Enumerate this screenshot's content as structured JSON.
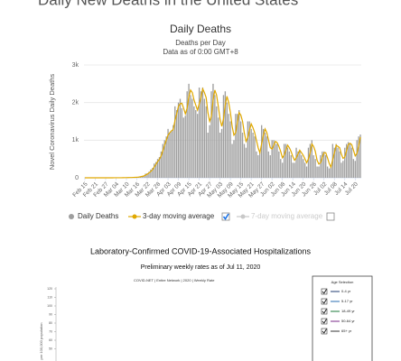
{
  "page_title": "Daily New Deaths in the United States",
  "chart_data": [
    {
      "type": "bar",
      "title": "Daily Deaths",
      "subtitle": [
        "Deaths per Day",
        "Data as of 0:00 GMT+8"
      ],
      "y_label": "Novel Coronavirus Daily Deaths",
      "categories": [
        "Feb 15",
        null,
        null,
        null,
        null,
        null,
        "Feb 21",
        null,
        null,
        null,
        null,
        null,
        "Feb 27",
        null,
        null,
        null,
        null,
        null,
        "Mar 04",
        null,
        null,
        null,
        null,
        null,
        "Mar 10",
        null,
        null,
        null,
        null,
        null,
        "Mar 16",
        null,
        null,
        null,
        null,
        null,
        "Mar 22",
        null,
        null,
        null,
        null,
        null,
        "Mar 28",
        null,
        null,
        null,
        null,
        null,
        "Apr 03",
        null,
        null,
        null,
        null,
        null,
        "Apr 09",
        null,
        null,
        null,
        null,
        null,
        "Apr 15",
        null,
        null,
        null,
        null,
        null,
        "Apr 21",
        null,
        null,
        null,
        null,
        null,
        "Apr 27",
        null,
        null,
        null,
        null,
        null,
        "May 03",
        null,
        null,
        null,
        null,
        null,
        "May 09",
        null,
        null,
        null,
        null,
        null,
        "May 15",
        null,
        null,
        null,
        null,
        null,
        "May 21",
        null,
        null,
        null,
        null,
        null,
        "May 27",
        null,
        null,
        null,
        null,
        null,
        "Jun 02",
        null,
        null,
        null,
        null,
        null,
        "Jun 08",
        null,
        null,
        null,
        null,
        null,
        "Jun 14",
        null,
        null,
        null,
        null,
        null,
        "Jun 20",
        null,
        null,
        null,
        null,
        null,
        "Jun 26",
        null,
        null,
        null,
        null,
        null,
        "Jul 02",
        null,
        null,
        null,
        null,
        null,
        "Jul 08",
        null,
        null,
        null,
        null,
        null,
        "Jul 14",
        null,
        null,
        null,
        null,
        null,
        "Jul 20",
        null,
        null,
        null
      ],
      "series": [
        {
          "name": "Daily Deaths",
          "color": "#9e9e9e",
          "values": [
            0,
            0,
            0,
            0,
            0,
            0,
            0,
            0,
            0,
            0,
            0,
            0,
            0,
            0,
            0,
            1,
            0,
            1,
            4,
            1,
            2,
            3,
            4,
            4,
            5,
            8,
            7,
            10,
            13,
            12,
            20,
            25,
            35,
            50,
            60,
            110,
            120,
            160,
            220,
            260,
            380,
            420,
            500,
            550,
            700,
            900,
            1000,
            1100,
            1300,
            1200,
            1250,
            1400,
            1900,
            1800,
            2000,
            2100,
            1850,
            1600,
            1650,
            2300,
            2500,
            2200,
            2100,
            1900,
            1800,
            1700,
            2400,
            2300,
            2400,
            2100,
            1900,
            1200,
            1400,
            2300,
            2500,
            2200,
            1900,
            1600,
            1200,
            1300,
            2200,
            2300,
            2000,
            1700,
            1500,
            900,
            1000,
            1700,
            1700,
            1800,
            1500,
            1200,
            900,
            800,
            1500,
            1500,
            1300,
            1200,
            1100,
            700,
            600,
            700,
            1400,
            1300,
            1200,
            1100,
            700,
            600,
            1000,
            1000,
            900,
            900,
            700,
            500,
            400,
            900,
            900,
            800,
            700,
            600,
            400,
            400,
            800,
            700,
            700,
            600,
            500,
            400,
            300,
            800,
            900,
            1000,
            600,
            500,
            300,
            300,
            600,
            700,
            700,
            600,
            300,
            250,
            300,
            900,
            800,
            900,
            800,
            700,
            400,
            450,
            800,
            900,
            950,
            900,
            800,
            500,
            450,
            1000,
            1100,
            1150
          ]
        },
        {
          "name": "3-day moving average",
          "color": "#e0a800",
          "type": "line",
          "checked": true,
          "values": [
            0,
            0,
            0,
            0,
            0,
            0,
            0,
            0,
            0,
            0,
            0,
            0,
            0,
            0,
            0,
            0,
            0,
            1,
            2,
            2,
            2,
            2,
            3,
            4,
            4,
            6,
            7,
            8,
            10,
            12,
            15,
            19,
            27,
            37,
            48,
            73,
            97,
            130,
            167,
            213,
            287,
            353,
            433,
            490,
            583,
            717,
            867,
            1000,
            1133,
            1200,
            1250,
            1283,
            1517,
            1700,
            1900,
            1967,
            1983,
            1850,
            1700,
            1850,
            2150,
            2333,
            2267,
            2067,
            1933,
            1800,
            1967,
            2133,
            2367,
            2267,
            2133,
            1733,
            1500,
            1633,
            2067,
            2333,
            2200,
            1900,
            1567,
            1367,
            1567,
            1933,
            2167,
            2000,
            1733,
            1367,
            1133,
            1200,
            1467,
            1733,
            1667,
            1500,
            1200,
            967,
            1067,
            1267,
            1433,
            1333,
            1200,
            1000,
            800,
            667,
            900,
            1133,
            1300,
            1200,
            1000,
            800,
            767,
            867,
            967,
            933,
            833,
            700,
            533,
            600,
            733,
            867,
            800,
            700,
            567,
            467,
            533,
            633,
            733,
            667,
            600,
            500,
            400,
            500,
            667,
            900,
            833,
            700,
            467,
            367,
            400,
            533,
            667,
            667,
            533,
            383,
            283,
            483,
            667,
            867,
            833,
            800,
            633,
            517,
            550,
            717,
            883,
            917,
            883,
            733,
            583,
            650,
            850,
            1083
          ]
        },
        {
          "name": "7-day moving average",
          "color": "#c8c8c8",
          "type": "line",
          "checked": false
        }
      ],
      "ylim": [
        0,
        3000
      ],
      "yticks": [
        0,
        {
          "value": 1000,
          "label": "1k"
        },
        {
          "value": 2000,
          "label": "2k"
        },
        {
          "value": 3000,
          "label": "3k"
        }
      ],
      "grid": true
    },
    {
      "type": "line",
      "title": "Laboratory-Confirmed COVID-19-Associated Hospitalizations",
      "subtitle": "Preliminary weekly rates as of Jul 11, 2020",
      "header": "COVID-NET | Entire Network | 2020 | Weekly Rate",
      "y_label": "per 100,000 population",
      "ylim": [
        0,
        120
      ],
      "yticks": [
        50,
        60,
        70,
        80,
        90,
        100,
        110,
        120
      ],
      "legend": {
        "title": "Age Selection",
        "items": [
          {
            "name": "0-4 yr",
            "color": "#1f3b70"
          },
          {
            "name": "5-17 yr",
            "color": "#2a6cb0"
          },
          {
            "name": "18-49 yr",
            "color": "#1b7a3a"
          },
          {
            "name": "50-64 yr",
            "color": "#7a2a8a"
          },
          {
            "name": "65+ yr",
            "color": "#333333"
          }
        ]
      }
    }
  ]
}
